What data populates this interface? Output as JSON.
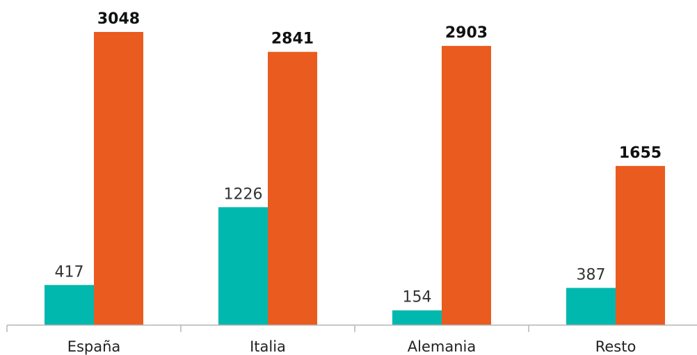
{
  "chart_data": {
    "type": "bar",
    "categories": [
      "España",
      "Italia",
      "Alemania",
      "Resto"
    ],
    "series": [
      {
        "values": [
          417,
          1226,
          154,
          387
        ],
        "color": "#00b8ad"
      },
      {
        "values": [
          3048,
          2841,
          2903,
          1655
        ],
        "color": "#ea5b1f"
      }
    ],
    "ylim": [
      0,
      3048
    ],
    "grid": false,
    "legend": "none"
  }
}
